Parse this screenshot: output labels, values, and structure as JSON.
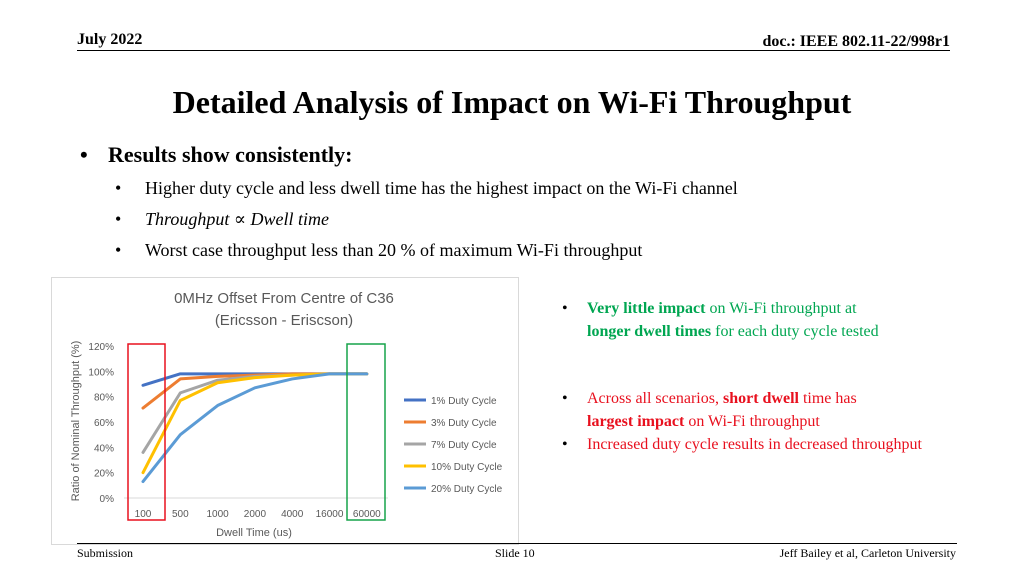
{
  "header": {
    "date": "July 2022",
    "doc": "doc.: IEEE 802.11-22/998r1"
  },
  "title": "Detailed Analysis of Impact on Wi-Fi Throughput",
  "bullets": {
    "main": "Results show consistently:",
    "sub": [
      "Higher duty cycle and less dwell time has the highest impact on the Wi-Fi channel",
      "Throughput ∝ Dwell time",
      "Worst case throughput less than 20 % of maximum Wi-Fi throughput"
    ]
  },
  "right_notes": {
    "note1": {
      "p1": "Very little impact",
      "p2": " on Wi-Fi throughput at ",
      "p3": "longer dwell times",
      "p4": " for each duty cycle tested"
    },
    "note2": {
      "p1": "Across all scenarios, ",
      "p2": "short dwell",
      "p3": " time has ",
      "p4": "largest impact",
      "p5": " on Wi-Fi throughput"
    },
    "note3": "Increased duty cycle results in decreased throughput"
  },
  "footer": {
    "left": "Submission",
    "center": "Slide 10",
    "right": "Jeff Bailey et al, Carleton University"
  },
  "colors": {
    "green": "#00a651",
    "red": "#e8101e",
    "highlight_red": "#e8101e",
    "highlight_green": "#16a34a"
  },
  "chart_data": {
    "type": "line",
    "title": "0MHz Offset From Centre of C36",
    "subtitle": "(Ericsson - Eriscson)",
    "xlabel": "Dwell Time (us)",
    "ylabel": "Ratio of Nominal Throughput (%)",
    "categories": [
      "100",
      "500",
      "1000",
      "2000",
      "4000",
      "16000",
      "60000"
    ],
    "y_ticks": [
      "0%",
      "20%",
      "40%",
      "60%",
      "80%",
      "100%",
      "120%"
    ],
    "ylim": [
      0,
      120
    ],
    "legend_position": "right",
    "grid": false,
    "series": [
      {
        "name": "1% Duty Cycle",
        "color": "#4472c4",
        "values": [
          89,
          98,
          98,
          98,
          98,
          98,
          98
        ]
      },
      {
        "name": "3% Duty Cycle",
        "color": "#ed7d31",
        "values": [
          71,
          94,
          96,
          97,
          98,
          98,
          98
        ]
      },
      {
        "name": "7% Duty Cycle",
        "color": "#a5a5a5",
        "values": [
          36,
          83,
          93,
          96,
          97,
          98,
          98
        ]
      },
      {
        "name": "10% Duty Cycle",
        "color": "#ffc000",
        "values": [
          20,
          77,
          91,
          95,
          97,
          98,
          98
        ]
      },
      {
        "name": "20% Duty Cycle",
        "color": "#5b9bd5",
        "values": [
          13,
          50,
          73,
          87,
          94,
          98,
          98
        ]
      }
    ]
  }
}
